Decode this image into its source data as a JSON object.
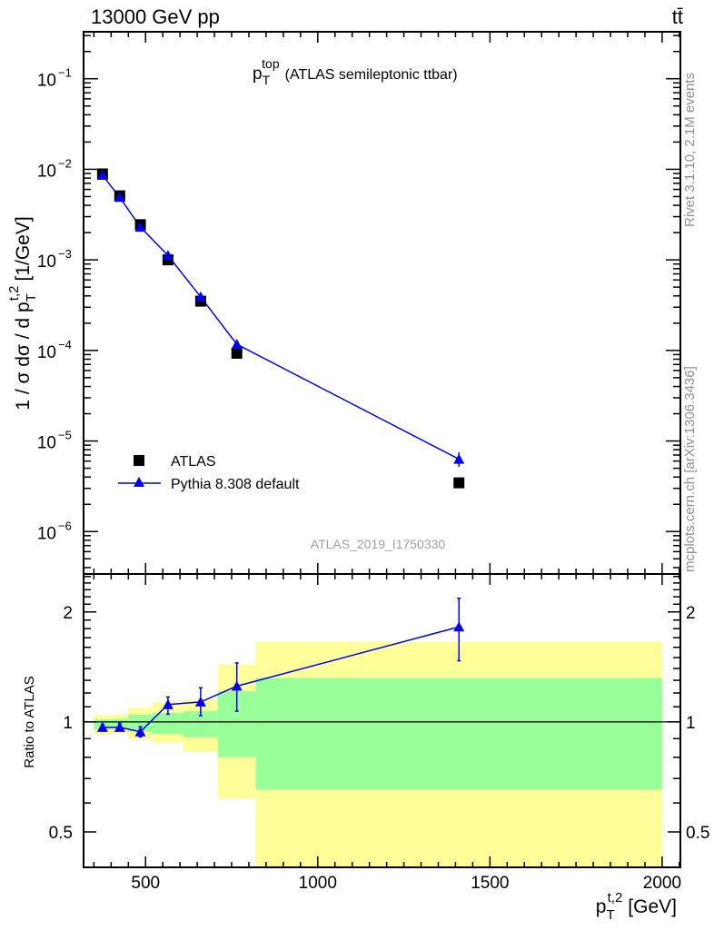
{
  "header": {
    "left": "13000 GeV pp",
    "right": "tt̄"
  },
  "side_labels": {
    "rivet": "Rivet 3.1.10,  2.1M events",
    "mcplots": "mcplots.cern.ch [arXiv:1306.3436]"
  },
  "chart_data": [
    {
      "type": "scatter",
      "title_main": "p",
      "title_sub": "T",
      "title_sup": "top",
      "title_rest": "(ATLAS semileptonic ttbar)",
      "analysis_id": "ATLAS_2019_I1750330",
      "ylabel": "1 / σ dσ / d p",
      "ylabel_sub": "T",
      "ylabel_sup": "t,2",
      "ylabel_unit": "[1/GeV]",
      "yscale": "log",
      "ylim": [
        3.4e-07,
        0.33
      ],
      "xlim": [
        320,
        2053
      ],
      "ytick_labels": [
        {
          "v": 0.1,
          "t": "10",
          "e": "−1"
        },
        {
          "v": 0.01,
          "t": "10",
          "e": "−2"
        },
        {
          "v": 0.001,
          "t": "10",
          "e": "−3"
        },
        {
          "v": 0.0001,
          "t": "10",
          "e": "−4"
        },
        {
          "v": 1e-05,
          "t": "10",
          "e": "−5"
        },
        {
          "v": 1e-06,
          "t": "10",
          "e": "−6"
        }
      ],
      "legend_position": "bottom-left",
      "x": [
        375,
        425,
        485,
        565,
        660,
        765,
        1410
      ],
      "series": [
        {
          "name": "ATLAS",
          "color": "#000000",
          "marker": "square",
          "values": [
            0.0089,
            0.0051,
            0.00245,
            0.001,
            0.00035,
            9.3e-05,
            3.45e-06
          ]
        },
        {
          "name": "Pythia 8.308 default",
          "color": "#0000ee",
          "marker": "triangle",
          "values": [
            0.0086,
            0.0049,
            0.0023,
            0.00112,
            0.00039,
            0.000117,
            6.3e-06
          ],
          "err_low": [
            0.0084,
            0.0048,
            0.00225,
            0.00108,
            0.00037,
            0.000106,
            5.2e-06
          ],
          "err_high": [
            0.0088,
            0.005,
            0.00235,
            0.00116,
            0.00041,
            0.000128,
            7.5e-06
          ]
        }
      ]
    },
    {
      "type": "scatter",
      "ylabel": "Ratio to ATLAS",
      "xlabel": "p",
      "xlabel_sub": "T",
      "xlabel_sup": "t,2",
      "xlabel_unit": "[GeV]",
      "yscale": "log",
      "ylim": [
        0.4,
        2.54
      ],
      "xlim": [
        320,
        2053
      ],
      "ytick_labels": [
        {
          "v": 2,
          "t": "2"
        },
        {
          "v": 1,
          "t": "1"
        },
        {
          "v": 0.5,
          "t": "0.5"
        }
      ],
      "xtick_labels": [
        {
          "v": 500,
          "t": "500"
        },
        {
          "v": 1000,
          "t": "1000"
        },
        {
          "v": 1500,
          "t": "1500"
        },
        {
          "v": 2000,
          "t": "2000"
        }
      ],
      "bins": [
        350,
        400,
        450,
        520,
        610,
        710,
        820,
        2000
      ],
      "band_yellow": {
        "color": "#ffff99",
        "low": [
          0.924,
          0.93,
          0.898,
          0.877,
          0.828,
          0.616,
          0.3
        ],
        "high": [
          1.043,
          1.048,
          1.093,
          1.132,
          1.149,
          1.435,
          1.657
        ]
      },
      "band_green": {
        "color": "#99ff99",
        "low": [
          0.955,
          0.957,
          0.94,
          0.926,
          0.908,
          0.801,
          0.652
        ],
        "high": [
          1.016,
          1.02,
          1.047,
          1.058,
          1.07,
          1.213,
          1.318
        ]
      },
      "x": [
        375,
        425,
        485,
        565,
        660,
        765,
        1410
      ],
      "series": [
        {
          "name": "Pythia 8.308 default / ATLAS",
          "color": "#0000ee",
          "values": [
            0.966,
            0.966,
            0.94,
            1.116,
            1.134,
            1.253,
            1.82
          ],
          "err_low": [
            0.95,
            0.95,
            0.91,
            1.05,
            1.04,
            1.07,
            1.47
          ],
          "err_high": [
            0.985,
            0.99,
            0.97,
            1.17,
            1.24,
            1.45,
            2.18
          ]
        }
      ]
    }
  ]
}
